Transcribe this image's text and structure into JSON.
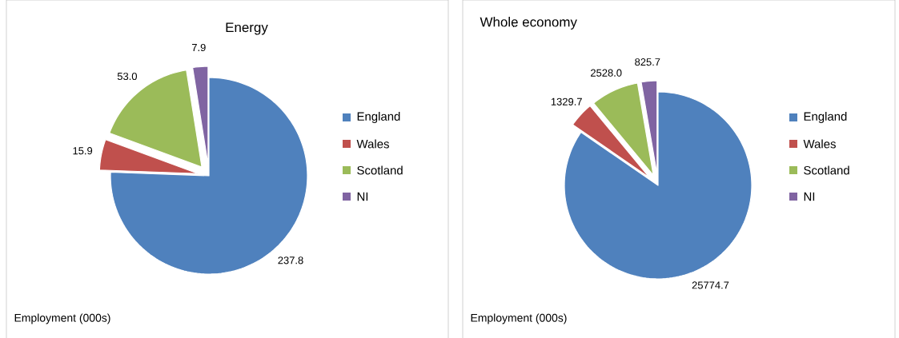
{
  "chart_data": [
    {
      "type": "pie",
      "title": "Energy",
      "categories": [
        "England",
        "Wales",
        "Scotland",
        "NI"
      ],
      "values": [
        237.8,
        15.9,
        53.0,
        7.9
      ],
      "value_labels": [
        "237.8",
        "15.9",
        "53.0",
        "7.9"
      ],
      "colors": [
        "#4f81bd",
        "#c0504d",
        "#9bbb59",
        "#8064a2"
      ],
      "legend": "right",
      "annotations": [
        "Employment (000s)"
      ]
    },
    {
      "type": "pie",
      "title": "Whole economy",
      "categories": [
        "England",
        "Wales",
        "Scotland",
        "NI"
      ],
      "values": [
        25774.7,
        1329.7,
        2528.0,
        825.7
      ],
      "value_labels": [
        "25774.7",
        "1329.7",
        "2528.0",
        "825.7"
      ],
      "colors": [
        "#4f81bd",
        "#c0504d",
        "#9bbb59",
        "#8064a2"
      ],
      "legend": "right",
      "annotations": [
        "Employment (000s)"
      ]
    }
  ]
}
